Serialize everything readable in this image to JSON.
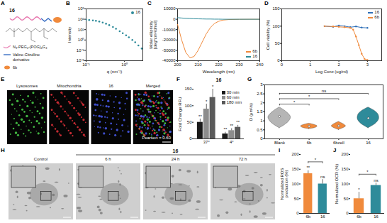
{
  "chart_data": [
    {
      "panel": "B",
      "type": "scatter",
      "x_label": "q (nm⁻¹)",
      "y_label": "Intensity",
      "log": true,
      "x": [
        0.1,
        0.12,
        0.15,
        0.18,
        0.22,
        0.27,
        0.33,
        0.4,
        0.5,
        0.6,
        0.75,
        0.9,
        1.1,
        1.3,
        1.6,
        1.9,
        2.3,
        2.8
      ],
      "series": [
        {
          "name": "16",
          "color": "#2e8b9a",
          "marker": "circle",
          "values": [
            90,
            85,
            78,
            70,
            60,
            48,
            37,
            27,
            18,
            12,
            7,
            4.5,
            2.8,
            1.8,
            1.0,
            0.6,
            0.3,
            0.15
          ]
        }
      ],
      "xlim": [
        0.1,
        3
      ],
      "xticks": [
        {
          "value": 0.1,
          "label": "10⁻¹"
        },
        {
          "value": 1,
          "label": "10⁰"
        }
      ],
      "ylim": [
        0.01,
        1000
      ],
      "yticks": [
        {
          "value": 0.01,
          "label": "10⁻²"
        },
        {
          "value": 0.1,
          "label": "10⁻¹"
        },
        {
          "value": 1,
          "label": "10⁰"
        },
        {
          "value": 10,
          "label": "10¹"
        },
        {
          "value": 100,
          "label": "10²"
        },
        {
          "value": 1000,
          "label": "10³"
        }
      ],
      "legend": "top-right"
    },
    {
      "panel": "C",
      "type": "line",
      "x_label": "Wavelength (nm)",
      "y_label": "Molar ellipticity [deg*cm²/dmol]",
      "x": [
        200,
        202,
        204,
        206,
        208,
        210,
        212,
        214,
        216,
        218,
        220,
        222,
        225,
        230,
        235,
        240
      ],
      "series": [
        {
          "name": "6b",
          "color": "#f08a3c",
          "values": [
            -5000,
            -20000,
            -32000,
            -37000,
            -36000,
            -30000,
            -22000,
            -14000,
            -8000,
            -4000,
            -2000,
            -800,
            -300,
            -100,
            0,
            0
          ]
        },
        {
          "name": "16",
          "color": "#2e8b9a",
          "values": [
            1500,
            1200,
            900,
            700,
            500,
            400,
            300,
            200,
            200,
            100,
            100,
            0,
            0,
            0,
            0,
            0
          ]
        }
      ],
      "xlim": [
        200,
        240
      ],
      "xticks": [
        200,
        210,
        220,
        230,
        240
      ],
      "ylim": [
        -40000,
        10000
      ],
      "yticks": [
        -40000,
        -30000,
        -20000,
        -10000,
        0,
        10000
      ],
      "legend": "bottom-right"
    },
    {
      "panel": "D",
      "type": "line",
      "marker": "circle",
      "x_label": "Log Conc (ug/ml)",
      "y_label": "Cell viability (%)",
      "series": [
        {
          "name": "16",
          "color": "#2e6fb8",
          "x": [
            1.5,
            1.8,
            2.0,
            2.2,
            2.4,
            2.6,
            2.8,
            3.0
          ],
          "values": [
            100,
            98,
            102,
            100,
            97,
            99,
            96,
            95
          ]
        },
        {
          "name": "6b",
          "color": "#f08a3c",
          "x": [
            1.5,
            1.8,
            2.0,
            2.2,
            2.4,
            2.5,
            2.6,
            2.7,
            2.8,
            2.9,
            3.0
          ],
          "values": [
            100,
            99,
            98,
            97,
            95,
            90,
            70,
            45,
            20,
            5,
            2
          ]
        }
      ],
      "xlim": [
        0,
        3.5
      ],
      "xticks": [
        0,
        1,
        2,
        3
      ],
      "ylim": [
        0,
        150
      ],
      "yticks": [
        0,
        50,
        100,
        150
      ],
      "legend": "top-right"
    },
    {
      "panel": "F",
      "type": "bar",
      "title": "16",
      "y_label": "Fold Change RFU",
      "categories": [
        "37°",
        "4°"
      ],
      "series": [
        {
          "name": "30 min",
          "color": "#1a1a1a",
          "values": [
            50,
            15
          ],
          "errors": [
            10,
            5
          ],
          "significance": [
            "**",
            "**"
          ]
        },
        {
          "name": "60 min",
          "color": "#8c8c8c",
          "values": [
            90,
            25
          ],
          "errors": [
            15,
            6
          ],
          "significance": [
            "*",
            "**"
          ]
        },
        {
          "name": "180 min",
          "color": "#5a5a5a",
          "values": [
            125,
            35
          ],
          "errors": [
            25,
            6
          ],
          "significance": [
            "*",
            "**"
          ]
        }
      ],
      "ylim": [
        0,
        150
      ],
      "yticks": [
        0,
        50,
        100,
        150
      ],
      "legend": "top-right"
    },
    {
      "panel": "G",
      "type": "violin",
      "y_label": "D (μm²/s)",
      "categories": [
        "Blank",
        "6b",
        "6bcell",
        "16"
      ],
      "colors": [
        "#b5b5b5",
        "#f08a3c",
        "#f08a3c",
        "#2e8b9a"
      ],
      "violins": [
        {
          "y": [
            0.6,
            0.8,
            1.0,
            1.2,
            1.4,
            1.6,
            1.75
          ],
          "widths": [
            0,
            0.2,
            0.33,
            0.38,
            0.3,
            0.15,
            0
          ],
          "median": 1.25
        },
        {
          "y": [
            0.55,
            0.62,
            0.7,
            0.78,
            0.85
          ],
          "widths": [
            0,
            0.22,
            0.28,
            0.18,
            0
          ],
          "median": 0.7
        },
        {
          "y": [
            0.5,
            0.6,
            0.7,
            0.8,
            0.95
          ],
          "widths": [
            0,
            0.15,
            0.24,
            0.18,
            0
          ],
          "median": 0.72
        },
        {
          "y": [
            0.6,
            0.85,
            1.1,
            1.35,
            1.55,
            1.75
          ],
          "widths": [
            0,
            0.25,
            0.36,
            0.34,
            0.22,
            0
          ],
          "median": 1.15
        }
      ],
      "comparisons": [
        {
          "from": "Blank",
          "to": "6b",
          "label": "*"
        },
        {
          "from": "Blank",
          "to": "6bcell",
          "label": "*"
        },
        {
          "from": "Blank",
          "to": "16",
          "label": "ns"
        }
      ],
      "ylim": [
        0,
        3
      ],
      "yticks": [
        0,
        0.5,
        1,
        1.5,
        2,
        2.5,
        3
      ]
    },
    {
      "panel": "I",
      "type": "bar",
      "y_label": "Normalized ROS production (%)",
      "categories": [
        "6b",
        "16"
      ],
      "values": [
        135,
        100
      ],
      "errors": [
        10,
        15
      ],
      "colors": [
        "#f08a3c",
        "#2e8b9a"
      ],
      "significance": [
        "**",
        "ns"
      ],
      "comparisons": [
        {
          "from": "6b",
          "to": "16",
          "label": "*"
        }
      ],
      "ylim": [
        0,
        200
      ],
      "yticks": [
        0,
        50,
        100,
        150,
        200
      ]
    },
    {
      "panel": "J",
      "type": "bar",
      "y_label": "Normalized OCR (%)",
      "categories": [
        "6b",
        "16"
      ],
      "values": [
        50,
        95
      ],
      "errors": [
        22,
        8
      ],
      "colors": [
        "#f08a3c",
        "#2e8b9a"
      ],
      "significance": [
        "*",
        "ns"
      ],
      "comparisons": [
        {
          "from": "6b",
          "to": "16",
          "label": "*"
        }
      ],
      "ylim": [
        0,
        200
      ],
      "yticks": [
        0,
        50,
        100,
        150,
        200
      ]
    }
  ],
  "diagram": {
    "panel": "A",
    "title": "16",
    "legend_items": [
      {
        "label": "N₃-PEG₄-(POG)₄G₄",
        "color": "#e87ab0"
      },
      {
        "label": "Valine-Citrulline derivative",
        "color": "#3a6fc4"
      },
      {
        "label": "6b",
        "color": "#f08a3c"
      }
    ]
  },
  "micrographs": [
    {
      "panel": "E",
      "columns": [
        "Lysosomes",
        "Mitochondria",
        "16",
        "Merged"
      ],
      "annotation": "Pearson = 0.60"
    },
    {
      "panel": "H",
      "group": "16",
      "columns": [
        "Control",
        "6 h",
        "24 h",
        "72 h"
      ]
    }
  ]
}
